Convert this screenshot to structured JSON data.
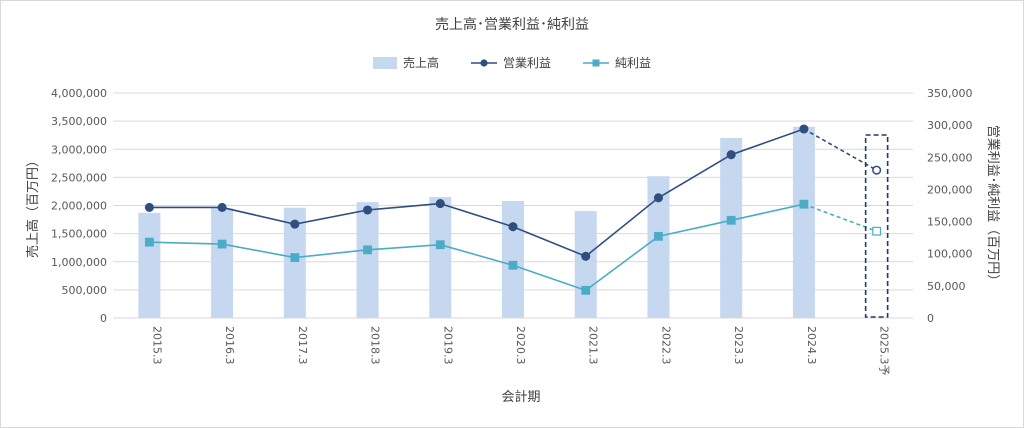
{
  "chart_data": {
    "type": "bar+line",
    "title": "売上高･営業利益･純利益",
    "xlabel": "会計期",
    "ylabel_left": "売上高（百万円）",
    "ylabel_right": "営業利益･純利益（百万円）",
    "categories": [
      "2015.3",
      "2016.3",
      "2017.3",
      "2018.3",
      "2019.3",
      "2020.3",
      "2021.3",
      "2022.3",
      "2023.3",
      "2024.3",
      "2025.3予"
    ],
    "y_left_ticks": [
      "0",
      "500,000",
      "1,000,000",
      "1,500,000",
      "2,000,000",
      "2,500,000",
      "3,000,000",
      "3,500,000",
      "4,000,000"
    ],
    "y_right_ticks": [
      "0",
      "50,000",
      "100,000",
      "150,000",
      "200,000",
      "250,000",
      "300,000",
      "350,000"
    ],
    "ylim_left": [
      0,
      4000000
    ],
    "ylim_right": [
      0,
      350000
    ],
    "grid": true,
    "legend_position": "top",
    "series": [
      {
        "name": "売上高",
        "kind": "bar",
        "axis": "left",
        "color": "#c6d7f0",
        "values": [
          1870000,
          1950000,
          1960000,
          2060000,
          2150000,
          2080000,
          1900000,
          2520000,
          3200000,
          3400000,
          null
        ]
      },
      {
        "name": "営業利益",
        "kind": "line",
        "axis": "right",
        "color": "#2f4f7f",
        "values": [
          172000,
          172000,
          146000,
          168000,
          178000,
          142000,
          96000,
          187000,
          254000,
          294000,
          230000
        ]
      },
      {
        "name": "純利益",
        "kind": "line",
        "axis": "right",
        "color": "#4bacc6",
        "values": [
          118000,
          115000,
          94000,
          106000,
          114000,
          82000,
          43000,
          127000,
          152000,
          177000,
          135000
        ]
      }
    ],
    "forecast_index": 10
  }
}
